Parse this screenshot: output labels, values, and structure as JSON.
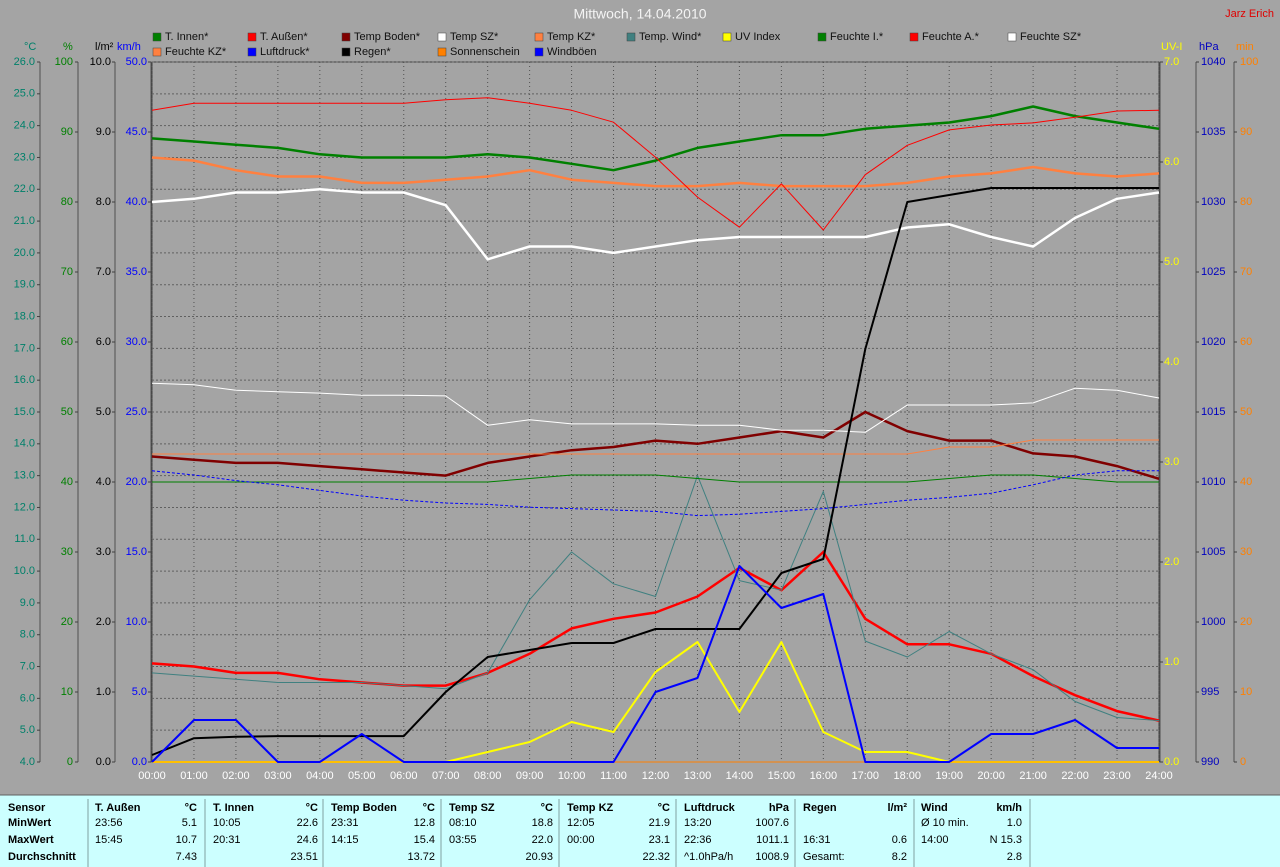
{
  "chart_data": {
    "type": "line",
    "title": "Mittwoch, 14.04.2010",
    "annotation": "Jarz Erich",
    "x": [
      0,
      1,
      2,
      3,
      4,
      5,
      6,
      7,
      8,
      9,
      10,
      11,
      12,
      13,
      14,
      15,
      16,
      17,
      18,
      19,
      20,
      21,
      22,
      23,
      24
    ],
    "xlim": [
      0,
      24
    ],
    "xticks": [
      {
        "value": 0,
        "label": "00:00"
      },
      {
        "value": 1,
        "label": "01:00"
      },
      {
        "value": 2,
        "label": "02:00"
      },
      {
        "value": 3,
        "label": "03:00"
      },
      {
        "value": 4,
        "label": "04:00"
      },
      {
        "value": 5,
        "label": "05:00"
      },
      {
        "value": 6,
        "label": "06:00"
      },
      {
        "value": 7,
        "label": "07:00"
      },
      {
        "value": 8,
        "label": "08:00"
      },
      {
        "value": 9,
        "label": "09:00"
      },
      {
        "value": 10,
        "label": "10:00"
      },
      {
        "value": 11,
        "label": "11:00"
      },
      {
        "value": 12,
        "label": "12:00"
      },
      {
        "value": 13,
        "label": "13:00"
      },
      {
        "value": 14,
        "label": "14:00"
      },
      {
        "value": 15,
        "label": "15:00"
      },
      {
        "value": 16,
        "label": "16:00"
      },
      {
        "value": 17,
        "label": "17:00"
      },
      {
        "value": 18,
        "label": "18:00"
      },
      {
        "value": 19,
        "label": "19:00"
      },
      {
        "value": 20,
        "label": "20:00"
      },
      {
        "value": 21,
        "label": "21:00"
      },
      {
        "value": 22,
        "label": "22:00"
      },
      {
        "value": 23,
        "label": "23:00"
      },
      {
        "value": 24,
        "label": "24:00"
      }
    ],
    "axes": [
      {
        "id": "c",
        "label": "°C",
        "side": "left",
        "color": "#00806a",
        "grid": true,
        "lim": [
          4,
          26
        ],
        "ticks": [
          {
            "value": 4,
            "label": "4.0"
          },
          {
            "value": 5,
            "label": "5.0"
          },
          {
            "value": 6,
            "label": "6.0"
          },
          {
            "value": 7,
            "label": "7.0"
          },
          {
            "value": 8,
            "label": "8.0"
          },
          {
            "value": 9,
            "label": "9.0"
          },
          {
            "value": 10,
            "label": "10.0"
          },
          {
            "value": 11,
            "label": "11.0"
          },
          {
            "value": 12,
            "label": "12.0"
          },
          {
            "value": 13,
            "label": "13.0"
          },
          {
            "value": 14,
            "label": "14.0"
          },
          {
            "value": 15,
            "label": "15.0"
          },
          {
            "value": 16,
            "label": "16.0"
          },
          {
            "value": 17,
            "label": "17.0"
          },
          {
            "value": 18,
            "label": "18.0"
          },
          {
            "value": 19,
            "label": "19.0"
          },
          {
            "value": 20,
            "label": "20.0"
          },
          {
            "value": 21,
            "label": "21.0"
          },
          {
            "value": 22,
            "label": "22.0"
          },
          {
            "value": 23,
            "label": "23.0"
          },
          {
            "value": 24,
            "label": "24.0"
          },
          {
            "value": 25,
            "label": "25.0"
          },
          {
            "value": 26,
            "label": "26.0"
          }
        ]
      },
      {
        "id": "pct",
        "label": "%",
        "side": "left",
        "color": "#008000",
        "lim": [
          0,
          100
        ],
        "ticks": [
          0,
          10,
          20,
          30,
          40,
          50,
          60,
          70,
          80,
          90,
          100
        ]
      },
      {
        "id": "lm2",
        "label": "l/m²",
        "side": "left",
        "color": "#000000",
        "lim": [
          0,
          10
        ],
        "ticks": [
          {
            "value": 0,
            "label": "0.0"
          },
          {
            "value": 1,
            "label": "1.0"
          },
          {
            "value": 2,
            "label": "2.0"
          },
          {
            "value": 3,
            "label": "3.0"
          },
          {
            "value": 4,
            "label": "4.0"
          },
          {
            "value": 5,
            "label": "5.0"
          },
          {
            "value": 6,
            "label": "6.0"
          },
          {
            "value": 7,
            "label": "7.0"
          },
          {
            "value": 8,
            "label": "8.0"
          },
          {
            "value": 9,
            "label": "9.0"
          },
          {
            "value": 10,
            "label": "10.0"
          }
        ]
      },
      {
        "id": "kmh",
        "label": "km/h",
        "side": "left",
        "color": "#0000ff",
        "lim": [
          0,
          50
        ],
        "ticks": [
          {
            "value": 0,
            "label": "0.0"
          },
          {
            "value": 5,
            "label": "5.0"
          },
          {
            "value": 10,
            "label": "10.0"
          },
          {
            "value": 15,
            "label": "15.0"
          },
          {
            "value": 20,
            "label": "20.0"
          },
          {
            "value": 25,
            "label": "25.0"
          },
          {
            "value": 30,
            "label": "30.0"
          },
          {
            "value": 35,
            "label": "35.0"
          },
          {
            "value": 40,
            "label": "40.0"
          },
          {
            "value": 45,
            "label": "45.0"
          },
          {
            "value": 50,
            "label": "50.0"
          }
        ]
      },
      {
        "id": "uv",
        "label": "UV-I",
        "side": "right",
        "color": "#ffff00",
        "lim": [
          0,
          7
        ],
        "ticks": [
          {
            "value": 0,
            "label": "0.0"
          },
          {
            "value": 1,
            "label": "1.0"
          },
          {
            "value": 2,
            "label": "2.0"
          },
          {
            "value": 3,
            "label": "3.0"
          },
          {
            "value": 4,
            "label": "4.0"
          },
          {
            "value": 5,
            "label": "5.0"
          },
          {
            "value": 6,
            "label": "6.0"
          },
          {
            "value": 7,
            "label": "7.0"
          }
        ]
      },
      {
        "id": "hpa",
        "label": "hPa",
        "side": "right",
        "color": "#0000c0",
        "lim": [
          990,
          1040
        ],
        "ticks": [
          990,
          995,
          1000,
          1005,
          1010,
          1015,
          1020,
          1025,
          1030,
          1035,
          1040
        ]
      },
      {
        "id": "min",
        "label": "min",
        "side": "right",
        "color": "#ff8000",
        "lim": [
          0,
          100
        ],
        "ticks": [
          0,
          10,
          20,
          30,
          40,
          50,
          60,
          70,
          80,
          90,
          100
        ]
      }
    ],
    "series": [
      {
        "name": "T. Innen*",
        "color": "#008000",
        "axis": "c",
        "line_width": 2.5,
        "values": [
          23.6,
          23.5,
          23.4,
          23.3,
          23.1,
          23.0,
          23.0,
          23.0,
          23.1,
          23.0,
          22.8,
          22.6,
          22.9,
          23.3,
          23.5,
          23.7,
          23.7,
          23.9,
          24.0,
          24.1,
          24.3,
          24.6,
          24.3,
          24.1,
          23.9
        ]
      },
      {
        "name": "T. Außen*",
        "color": "#ff0000",
        "axis": "c",
        "line_width": 2.5,
        "values": [
          7.1,
          7.0,
          6.8,
          6.8,
          6.6,
          6.5,
          6.4,
          6.4,
          6.8,
          7.4,
          8.2,
          8.5,
          8.7,
          9.2,
          10.1,
          9.4,
          10.6,
          8.5,
          7.7,
          7.7,
          7.4,
          6.7,
          6.1,
          5.6,
          5.3
        ]
      },
      {
        "name": "Temp Boden*",
        "color": "#800000",
        "axis": "c",
        "line_width": 2.5,
        "values": [
          13.6,
          13.5,
          13.4,
          13.4,
          13.3,
          13.2,
          13.1,
          13.0,
          13.4,
          13.6,
          13.8,
          13.9,
          14.1,
          14.0,
          14.2,
          14.4,
          14.2,
          15.0,
          14.4,
          14.1,
          14.1,
          13.7,
          13.6,
          13.3,
          12.9
        ]
      },
      {
        "name": "Temp SZ*",
        "color": "#ffffff",
        "axis": "c",
        "line_width": 2.5,
        "values": [
          21.6,
          21.7,
          21.9,
          21.9,
          22.0,
          21.9,
          21.9,
          21.5,
          19.8,
          20.2,
          20.2,
          20.0,
          20.2,
          20.4,
          20.5,
          20.5,
          20.5,
          20.5,
          20.8,
          20.9,
          20.5,
          20.2,
          21.1,
          21.7,
          21.9
        ]
      },
      {
        "name": "Temp KZ*",
        "color": "#ff8040",
        "axis": "c",
        "line_width": 2.5,
        "values": [
          23.0,
          22.9,
          22.6,
          22.4,
          22.4,
          22.2,
          22.2,
          22.3,
          22.4,
          22.6,
          22.3,
          22.2,
          22.1,
          22.1,
          22.2,
          22.1,
          22.1,
          22.1,
          22.2,
          22.4,
          22.5,
          22.7,
          22.5,
          22.4,
          22.5
        ]
      },
      {
        "name": "Temp. Wind*",
        "color": "#408080",
        "axis": "c",
        "line_width": 1,
        "values": [
          6.8,
          6.7,
          6.6,
          6.5,
          6.5,
          6.5,
          6.4,
          6.3,
          6.8,
          9.1,
          10.6,
          9.6,
          9.2,
          13.0,
          9.7,
          9.4,
          12.5,
          7.8,
          7.3,
          8.1,
          7.4,
          6.9,
          5.9,
          5.4,
          5.3
        ]
      },
      {
        "name": "UV Index",
        "color": "#ffff00",
        "axis": "uv",
        "line_width": 2,
        "values": [
          0,
          0,
          0,
          0,
          0,
          0,
          0,
          0,
          0.1,
          0.2,
          0.4,
          0.3,
          0.9,
          1.2,
          0.5,
          1.2,
          0.3,
          0.1,
          0.1,
          0,
          0,
          0,
          0,
          0,
          0
        ]
      },
      {
        "name": "Feuchte I.*",
        "color": "#008000",
        "axis": "pct",
        "line_width": 1,
        "values": [
          40,
          40,
          40,
          40,
          40,
          40,
          40,
          40,
          40,
          40.5,
          41,
          41,
          41,
          40.5,
          40,
          40,
          40,
          40,
          40,
          40.5,
          41,
          41,
          40.5,
          40,
          40
        ]
      },
      {
        "name": "Feuchte A.*",
        "color": "#ff0000",
        "axis": "pct",
        "line_width": 1,
        "values": [
          93.1,
          94.1,
          94.1,
          94.1,
          94.1,
          94.1,
          94.1,
          94.6,
          94.9,
          94.1,
          93.1,
          91.4,
          86.4,
          80.7,
          76.4,
          82.6,
          76.0,
          83.9,
          88.1,
          90.3,
          91.0,
          91.3,
          92.1,
          93.0,
          93.1
        ]
      },
      {
        "name": "Feuchte SZ*",
        "color": "#ffffff",
        "axis": "pct",
        "line_width": 1,
        "values": [
          54.1,
          53.9,
          53.1,
          52.9,
          52.7,
          52.4,
          52.4,
          52.3,
          48.1,
          48.9,
          48.3,
          48.3,
          48.3,
          48.1,
          48.1,
          47.4,
          47.4,
          47.1,
          51.0,
          51.0,
          51.0,
          51.3,
          53.4,
          53.1,
          52.0
        ]
      },
      {
        "name": "Feuchte KZ*",
        "color": "#ff8040",
        "axis": "pct",
        "line_width": 1,
        "values": [
          44,
          44,
          44,
          44,
          44,
          44,
          44,
          44,
          44,
          44,
          44,
          44,
          44,
          44,
          44,
          44,
          44,
          44,
          44,
          45,
          45,
          46,
          46,
          46,
          46
        ]
      },
      {
        "name": "Luftdruck*",
        "color": "#0000ff",
        "axis": "hpa",
        "line_width": 1,
        "dashed": true,
        "values": [
          1010.8,
          1010.5,
          1010.1,
          1009.8,
          1009.4,
          1009.0,
          1008.7,
          1008.5,
          1008.4,
          1008.2,
          1008.1,
          1008.0,
          1007.9,
          1007.6,
          1007.7,
          1007.9,
          1008.1,
          1008.4,
          1008.7,
          1008.9,
          1009.2,
          1009.8,
          1010.5,
          1010.8,
          1010.8
        ]
      },
      {
        "name": "Regen*",
        "color": "#000000",
        "axis": "lm2",
        "line_width": 2,
        "values": [
          0.1,
          0.34,
          0.36,
          0.37,
          0.37,
          0.37,
          0.37,
          1.0,
          1.5,
          1.6,
          1.7,
          1.7,
          1.9,
          1.9,
          1.9,
          2.7,
          2.9,
          5.9,
          8.0,
          8.1,
          8.2,
          8.2,
          8.2,
          8.2,
          8.2
        ]
      },
      {
        "name": "Sonnenschein",
        "color": "#ff8000",
        "axis": "min",
        "line_width": 1,
        "values": [
          0,
          0,
          0,
          0,
          0,
          0,
          0,
          0,
          0,
          0,
          0,
          0,
          0,
          0,
          0,
          0,
          0,
          0,
          0,
          0,
          0,
          0,
          0,
          0,
          0
        ]
      },
      {
        "name": "Windböen",
        "color": "#0000ff",
        "axis": "kmh",
        "line_width": 2,
        "values": [
          0,
          3,
          3,
          0,
          0,
          2,
          0,
          0,
          0,
          0,
          0,
          0,
          5,
          6,
          14,
          11,
          12,
          0,
          0,
          0,
          2,
          2,
          3,
          1,
          1
        ]
      }
    ]
  },
  "stats": {
    "row_labels": [
      "Sensor",
      "MinWert",
      "MaxWert",
      "Durchschnitt"
    ],
    "columns": [
      {
        "header": "T. Außen",
        "unit": "°C",
        "rows": [
          [
            "23:56",
            "5.1"
          ],
          [
            "15:45",
            "10.7"
          ],
          [
            null,
            "7.43"
          ]
        ]
      },
      {
        "header": "T. Innen",
        "unit": "°C",
        "rows": [
          [
            "10:05",
            "22.6"
          ],
          [
            "20:31",
            "24.6"
          ],
          [
            null,
            "23.51"
          ]
        ]
      },
      {
        "header": "Temp Boden",
        "unit": "°C",
        "rows": [
          [
            "23:31",
            "12.8"
          ],
          [
            "14:15",
            "15.4"
          ],
          [
            null,
            "13.72"
          ]
        ]
      },
      {
        "header": "Temp SZ",
        "unit": "°C",
        "rows": [
          [
            "08:10",
            "18.8"
          ],
          [
            "03:55",
            "22.0"
          ],
          [
            null,
            "20.93"
          ]
        ]
      },
      {
        "header": "Temp KZ",
        "unit": "°C",
        "rows": [
          [
            "12:05",
            "21.9"
          ],
          [
            "00:00",
            "23.1"
          ],
          [
            null,
            "22.32"
          ]
        ]
      },
      {
        "header": "Luftdruck",
        "unit": "hPa",
        "rows": [
          [
            "13:20",
            "1007.6"
          ],
          [
            "22:36",
            "1011.1"
          ],
          [
            "^1.0hPa/h",
            "1008.9"
          ]
        ]
      },
      {
        "header": "Regen",
        "unit": "l/m²",
        "rows": [
          [
            null,
            null
          ],
          [
            "16:31",
            "0.6"
          ],
          [
            "Gesamt:",
            "8.2"
          ]
        ]
      },
      {
        "header": "Wind",
        "unit": "km/h",
        "rows": [
          [
            "Ø 10 min.",
            "1.0"
          ],
          [
            "14:00",
            "N 15.3"
          ],
          [
            null,
            "2.8"
          ]
        ]
      }
    ]
  }
}
